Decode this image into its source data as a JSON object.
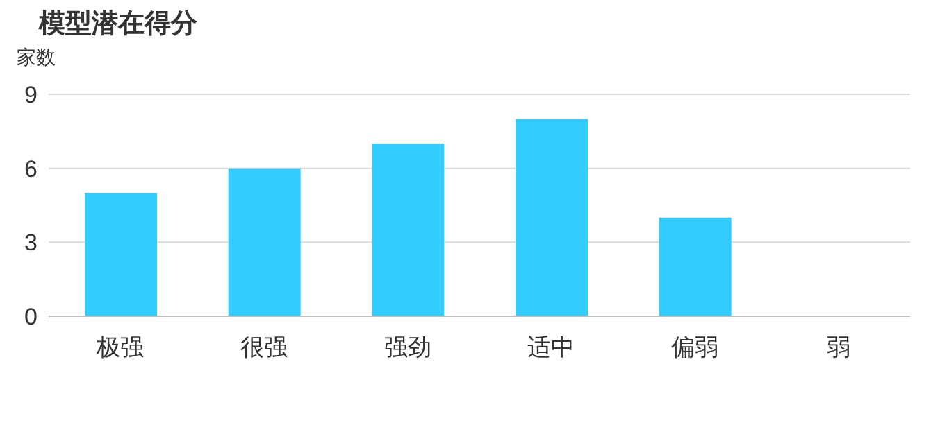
{
  "chart_data": {
    "type": "bar",
    "title": "模型潜在得分",
    "ylabel": "家数",
    "categories": [
      "极强",
      "很强",
      "强劲",
      "适中",
      "偏弱",
      "弱"
    ],
    "values": [
      5,
      6,
      7,
      8,
      4,
      0
    ],
    "color": "#33ccff",
    "ylim": [
      0,
      9
    ],
    "yticks": [
      0,
      3,
      6,
      9
    ],
    "grid": "y"
  }
}
